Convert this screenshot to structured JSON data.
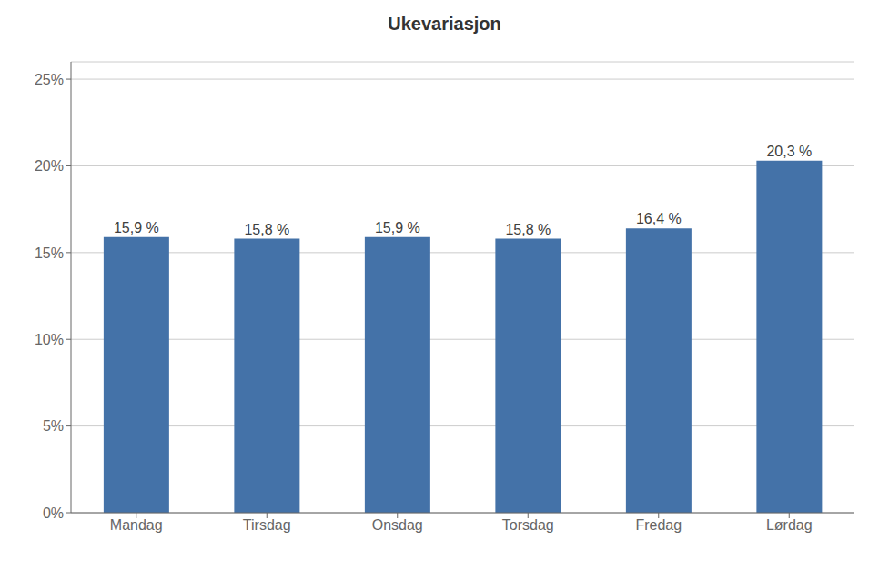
{
  "chart_data": {
    "type": "bar",
    "title": "Ukevariasjon",
    "categories": [
      "Mandag",
      "Tirsdag",
      "Onsdag",
      "Torsdag",
      "Fredag",
      "Lørdag"
    ],
    "values": [
      0.159,
      0.158,
      0.159,
      0.158,
      0.164,
      0.203
    ],
    "value_labels": [
      "15,9 %",
      "15,8 %",
      "15,9 %",
      "15,8 %",
      "16,4 %",
      "20,3 %"
    ],
    "data_labels": true,
    "color": "#4472A8",
    "ylim": [
      0,
      0.26
    ],
    "yticks": [
      {
        "value": 0.0,
        "label": "0%"
      },
      {
        "value": 0.05,
        "label": "5%"
      },
      {
        "value": 0.1,
        "label": "10%"
      },
      {
        "value": 0.15,
        "label": "15%"
      },
      {
        "value": 0.2,
        "label": "20%"
      },
      {
        "value": 0.25,
        "label": "25%"
      }
    ],
    "grid": true
  }
}
